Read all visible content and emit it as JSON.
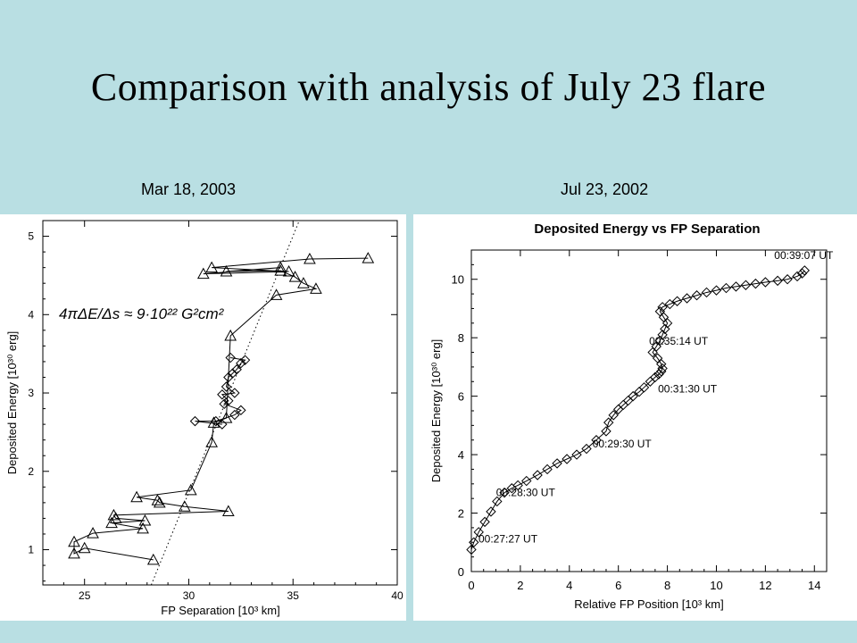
{
  "slide": {
    "title": "Comparison with analysis of July 23 flare",
    "left_label": "Mar 18, 2003",
    "right_label": "Jul 23, 2002"
  },
  "chart_data": [
    {
      "type": "line",
      "title": "",
      "xlabel": "FP Separation  [10³ km]",
      "ylabel": "Deposited Energy  [10³⁰ erg]",
      "xlim": [
        23,
        40
      ],
      "ylim": [
        0.55,
        5.2
      ],
      "xticks": [
        "25",
        "30",
        "35",
        "40"
      ],
      "yticks": [
        "1",
        "2",
        "3",
        "4",
        "5"
      ],
      "annotation": "4πΔE/Δs ≈ 9·10²² G²cm²",
      "fit_line": {
        "x": [
          28.2,
          35.3
        ],
        "y": [
          0.55,
          5.2
        ]
      },
      "series": [
        {
          "marker": "triangle",
          "x": [
            38.6,
            35.8,
            31.1,
            34.8,
            30.7,
            34.4,
            31.8,
            34.4,
            35.1,
            35.5,
            36.1,
            34.2,
            32.0,
            31.8,
            31.2,
            31.1,
            30.1,
            27.5,
            28.5,
            28.6,
            29.8,
            31.9,
            26.4,
            26.5,
            27.9,
            26.3,
            27.8,
            25.4,
            24.5,
            24.5,
            25.0,
            28.3
          ],
          "y": [
            4.72,
            4.71,
            4.6,
            4.55,
            4.52,
            4.6,
            4.55,
            4.56,
            4.48,
            4.4,
            4.33,
            4.25,
            3.73,
            2.68,
            2.62,
            2.37,
            1.76,
            1.67,
            1.63,
            1.6,
            1.55,
            1.49,
            1.44,
            1.4,
            1.37,
            1.34,
            1.27,
            1.21,
            1.1,
            0.95,
            1.02,
            0.87
          ]
        },
        {
          "marker": "diamond",
          "x": [
            32.0,
            32.7,
            32.5,
            32.3,
            32.1,
            31.9,
            31.8,
            32.2,
            31.6,
            31.9,
            31.7,
            32.5,
            32.2,
            31.3,
            30.3,
            31.6
          ],
          "y": [
            3.45,
            3.42,
            3.38,
            3.3,
            3.25,
            3.2,
            3.08,
            3.0,
            2.98,
            2.9,
            2.86,
            2.78,
            2.72,
            2.64,
            2.64,
            2.6
          ]
        }
      ]
    },
    {
      "type": "line",
      "title": "Deposited Energy vs FP Separation",
      "xlabel": "Relative FP Position  [10³ km]",
      "ylabel": "Deposited Energy  [10³⁰ erg]",
      "xlim": [
        0,
        14.5
      ],
      "ylim": [
        0,
        11
      ],
      "xticks": [
        "0",
        "2",
        "4",
        "6",
        "8",
        "10",
        "12",
        "14"
      ],
      "yticks": [
        "0",
        "2",
        "4",
        "6",
        "8",
        "10"
      ],
      "series": [
        {
          "marker": "diamond",
          "x": [
            0.0,
            0.1,
            0.3,
            0.55,
            0.8,
            1.05,
            1.35,
            1.65,
            1.9,
            2.25,
            2.7,
            3.1,
            3.5,
            3.9,
            4.3,
            4.7,
            5.1,
            5.5,
            5.6,
            5.8,
            6.0,
            6.2,
            6.4,
            6.6,
            6.85,
            7.05,
            7.3,
            7.5,
            7.65,
            7.75,
            7.8,
            7.75,
            7.6,
            7.4,
            7.55,
            7.7,
            7.8,
            7.9,
            8.0,
            7.85,
            7.7,
            7.8,
            8.1,
            8.4,
            8.8,
            9.2,
            9.6,
            10.0,
            10.4,
            10.8,
            11.2,
            11.6,
            12.0,
            12.5,
            12.9,
            13.3,
            13.5,
            13.6
          ],
          "y": [
            0.75,
            1.0,
            1.35,
            1.7,
            2.05,
            2.4,
            2.7,
            2.85,
            2.95,
            3.1,
            3.3,
            3.5,
            3.7,
            3.85,
            4.0,
            4.2,
            4.5,
            4.8,
            5.1,
            5.35,
            5.55,
            5.7,
            5.85,
            6.0,
            6.15,
            6.3,
            6.5,
            6.65,
            6.75,
            6.85,
            6.95,
            7.1,
            7.3,
            7.5,
            7.7,
            7.9,
            8.1,
            8.3,
            8.5,
            8.7,
            8.9,
            9.05,
            9.15,
            9.25,
            9.35,
            9.45,
            9.55,
            9.62,
            9.7,
            9.75,
            9.8,
            9.85,
            9.9,
            9.95,
            10.0,
            10.1,
            10.2,
            10.3
          ]
        }
      ],
      "annotations": [
        {
          "text": "00:27:27 UT",
          "x": 0.0,
          "y": 0.75
        },
        {
          "text": "00:28:30 UT",
          "x": 2.25,
          "y": 3.1
        },
        {
          "text": "00:29:30 UT",
          "x": 5.6,
          "y": 5.1
        },
        {
          "text": "00:31:30 UT",
          "x": 7.8,
          "y": 6.95
        },
        {
          "text": "00:35:14 UT",
          "x": 7.8,
          "y": 8.5
        },
        {
          "text": "00:39:07 UT",
          "x": 13.6,
          "y": 10.3
        }
      ]
    }
  ]
}
